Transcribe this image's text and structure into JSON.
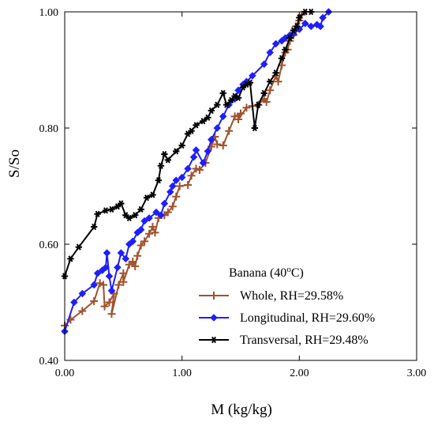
{
  "chart_data": {
    "type": "line",
    "xlabel": "M (kg/kg)",
    "ylabel": "S/So",
    "xlim": [
      0,
      3
    ],
    "ylim": [
      0.4,
      1.0
    ],
    "x_ticks": [
      0,
      1,
      2,
      3
    ],
    "x_tick_labels": [
      "0.00",
      "1.00",
      "2.00",
      "3.00"
    ],
    "y_ticks": [
      0.4,
      0.6,
      0.8,
      1.0
    ],
    "y_tick_labels": [
      "0.40",
      "0.60",
      "0.80",
      "1.00"
    ],
    "grid": false,
    "legend": {
      "title_parts": [
        "Banana (40",
        "o",
        "C)"
      ],
      "placement": "bottom-right"
    },
    "series": [
      {
        "name": "Whole, RH=29.58%",
        "color": "#a0522d",
        "marker": "plus",
        "points": [
          [
            0.0,
            0.46
          ],
          [
            0.05,
            0.47
          ],
          [
            0.15,
            0.485
          ],
          [
            0.25,
            0.502
          ],
          [
            0.3,
            0.533
          ],
          [
            0.33,
            0.53
          ],
          [
            0.34,
            0.493
          ],
          [
            0.38,
            0.5
          ],
          [
            0.42,
            0.515
          ],
          [
            0.4,
            0.48
          ],
          [
            0.46,
            0.53
          ],
          [
            0.5,
            0.55
          ],
          [
            0.5,
            0.535
          ],
          [
            0.55,
            0.565
          ],
          [
            0.58,
            0.57
          ],
          [
            0.6,
            0.562
          ],
          [
            0.62,
            0.58
          ],
          [
            0.65,
            0.598
          ],
          [
            0.68,
            0.605
          ],
          [
            0.72,
            0.618
          ],
          [
            0.75,
            0.63
          ],
          [
            0.77,
            0.62
          ],
          [
            0.8,
            0.645
          ],
          [
            0.85,
            0.65
          ],
          [
            0.88,
            0.655
          ],
          [
            0.92,
            0.665
          ],
          [
            0.95,
            0.682
          ],
          [
            0.98,
            0.7
          ],
          [
            1.05,
            0.702
          ],
          [
            1.08,
            0.718
          ],
          [
            1.12,
            0.73
          ],
          [
            1.15,
            0.728
          ],
          [
            1.2,
            0.74
          ],
          [
            1.25,
            0.768
          ],
          [
            1.28,
            0.785
          ],
          [
            1.3,
            0.772
          ],
          [
            1.35,
            0.77
          ],
          [
            1.4,
            0.795
          ],
          [
            1.45,
            0.82
          ],
          [
            1.5,
            0.825
          ],
          [
            1.48,
            0.815
          ],
          [
            1.55,
            0.835
          ],
          [
            1.6,
            0.838
          ],
          [
            1.65,
            0.84
          ],
          [
            1.7,
            0.85
          ],
          [
            1.72,
            0.845
          ],
          [
            1.75,
            0.865
          ],
          [
            1.8,
            0.89
          ],
          [
            1.82,
            0.88
          ],
          [
            1.85,
            0.908
          ],
          [
            1.88,
            0.93
          ],
          [
            1.9,
            0.935
          ],
          [
            1.92,
            0.95
          ],
          [
            1.95,
            0.96
          ],
          [
            1.97,
            0.975
          ],
          [
            2.0,
            0.985
          ],
          [
            2.02,
            0.995
          ]
        ]
      },
      {
        "name": "Longitudinal, RH=29.60%",
        "color": "#1e1eff",
        "marker": "diamond",
        "points": [
          [
            0.0,
            0.45
          ],
          [
            0.08,
            0.5
          ],
          [
            0.15,
            0.515
          ],
          [
            0.25,
            0.53
          ],
          [
            0.28,
            0.55
          ],
          [
            0.32,
            0.555
          ],
          [
            0.35,
            0.56
          ],
          [
            0.36,
            0.585
          ],
          [
            0.38,
            0.545
          ],
          [
            0.4,
            0.52
          ],
          [
            0.45,
            0.56
          ],
          [
            0.48,
            0.585
          ],
          [
            0.52,
            0.575
          ],
          [
            0.55,
            0.6
          ],
          [
            0.58,
            0.605
          ],
          [
            0.62,
            0.62
          ],
          [
            0.65,
            0.625
          ],
          [
            0.68,
            0.64
          ],
          [
            0.72,
            0.645
          ],
          [
            0.78,
            0.655
          ],
          [
            0.82,
            0.65
          ],
          [
            0.85,
            0.67
          ],
          [
            0.9,
            0.69
          ],
          [
            0.92,
            0.7
          ],
          [
            0.95,
            0.71
          ],
          [
            1.0,
            0.715
          ],
          [
            1.05,
            0.73
          ],
          [
            1.1,
            0.75
          ],
          [
            1.12,
            0.762
          ],
          [
            1.18,
            0.74
          ],
          [
            1.22,
            0.76
          ],
          [
            1.25,
            0.78
          ],
          [
            1.3,
            0.8
          ],
          [
            1.35,
            0.82
          ],
          [
            1.4,
            0.84
          ],
          [
            1.45,
            0.85
          ],
          [
            1.48,
            0.865
          ],
          [
            1.52,
            0.875
          ],
          [
            1.55,
            0.88
          ],
          [
            1.6,
            0.89
          ],
          [
            1.7,
            0.91
          ],
          [
            1.75,
            0.93
          ],
          [
            1.8,
            0.945
          ],
          [
            1.85,
            0.95
          ],
          [
            1.88,
            0.955
          ],
          [
            1.92,
            0.96
          ],
          [
            1.95,
            0.962
          ],
          [
            2.0,
            0.97
          ],
          [
            2.05,
            0.98
          ],
          [
            2.1,
            0.975
          ],
          [
            2.15,
            0.978
          ],
          [
            2.18,
            0.975
          ],
          [
            2.2,
            0.99
          ],
          [
            2.25,
            1.0
          ]
        ]
      },
      {
        "name": "Transversal, RH=29.48%",
        "color": "#000000",
        "marker": "star",
        "points": [
          [
            0.0,
            0.545
          ],
          [
            0.05,
            0.575
          ],
          [
            0.12,
            0.595
          ],
          [
            0.25,
            0.63
          ],
          [
            0.28,
            0.652
          ],
          [
            0.35,
            0.658
          ],
          [
            0.4,
            0.66
          ],
          [
            0.45,
            0.665
          ],
          [
            0.48,
            0.67
          ],
          [
            0.52,
            0.65
          ],
          [
            0.55,
            0.645
          ],
          [
            0.6,
            0.65
          ],
          [
            0.65,
            0.66
          ],
          [
            0.7,
            0.68
          ],
          [
            0.75,
            0.685
          ],
          [
            0.8,
            0.71
          ],
          [
            0.82,
            0.735
          ],
          [
            0.85,
            0.755
          ],
          [
            0.88,
            0.745
          ],
          [
            0.95,
            0.76
          ],
          [
            1.0,
            0.77
          ],
          [
            1.05,
            0.79
          ],
          [
            1.08,
            0.795
          ],
          [
            1.12,
            0.805
          ],
          [
            1.18,
            0.812
          ],
          [
            1.22,
            0.818
          ],
          [
            1.25,
            0.83
          ],
          [
            1.3,
            0.84
          ],
          [
            1.35,
            0.86
          ],
          [
            1.38,
            0.84
          ],
          [
            1.42,
            0.848
          ],
          [
            1.45,
            0.855
          ],
          [
            1.48,
            0.852
          ],
          [
            1.52,
            0.87
          ],
          [
            1.55,
            0.875
          ],
          [
            1.58,
            0.878
          ],
          [
            1.62,
            0.8
          ],
          [
            1.65,
            0.84
          ],
          [
            1.7,
            0.86
          ],
          [
            1.75,
            0.88
          ],
          [
            1.8,
            0.895
          ],
          [
            1.85,
            0.92
          ],
          [
            1.88,
            0.935
          ],
          [
            1.92,
            0.955
          ],
          [
            1.95,
            0.968
          ],
          [
            1.98,
            0.975
          ],
          [
            2.0,
            0.99
          ],
          [
            2.05,
            1.0
          ],
          [
            2.1,
            1.0
          ]
        ]
      }
    ]
  }
}
